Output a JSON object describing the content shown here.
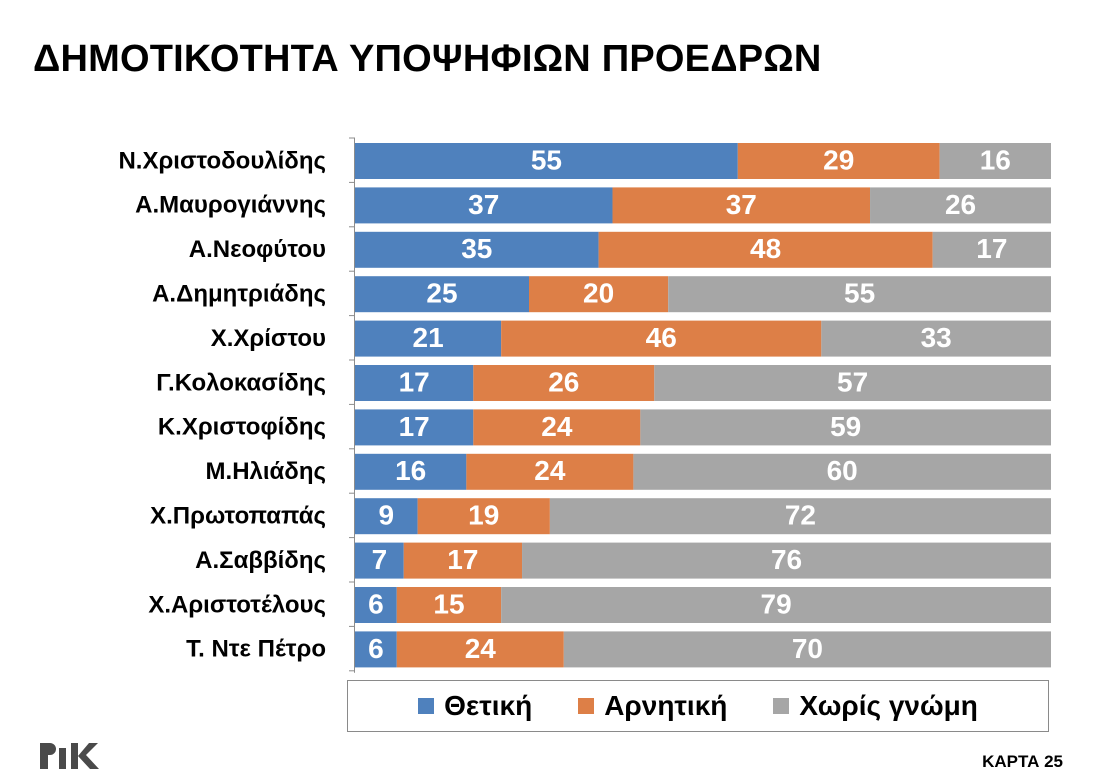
{
  "title": "ΔΗΜΟΤΙΚΟΤΗΤΑ ΥΠΟΨΗΦΙΩΝ ΠΡΟΕΔΡΩΝ",
  "footer": {
    "logo_text": "ΡΙΚ",
    "card_label": "ΚΑΡΤΑ 25"
  },
  "colors": {
    "positive": "#4f81bd",
    "negative": "#dd7f47",
    "no_opinion": "#a6a6a6"
  },
  "chart_data": {
    "type": "bar",
    "orientation": "horizontal",
    "stacked": true,
    "xlim": [
      0,
      100
    ],
    "legend_position": "bottom",
    "categories": [
      "Ν.Χριστοδουλίδης",
      "Α.Μαυρογιάννης",
      "Α.Νεοφύτου",
      "Α.Δημητριάδης",
      "Χ.Χρίστου",
      "Γ.Κολοκασίδης",
      "Κ.Χριστοφίδης",
      "Μ.Ηλιάδης",
      "Χ.Πρωτοπαπάς",
      "Α.Σαββίδης",
      "Χ.Αριστοτέλους",
      "Τ. Ντε Πέτρο"
    ],
    "series": [
      {
        "name": "Θετική",
        "color": "#4f81bd",
        "values": [
          55,
          37,
          35,
          25,
          21,
          17,
          17,
          16,
          9,
          7,
          6,
          6
        ]
      },
      {
        "name": "Αρνητική",
        "color": "#dd7f47",
        "values": [
          29,
          37,
          48,
          20,
          46,
          26,
          24,
          24,
          19,
          17,
          15,
          24
        ]
      },
      {
        "name": "Χωρίς γνώμη",
        "color": "#a6a6a6",
        "values": [
          16,
          26,
          17,
          55,
          33,
          57,
          59,
          60,
          72,
          76,
          79,
          70
        ]
      }
    ]
  }
}
